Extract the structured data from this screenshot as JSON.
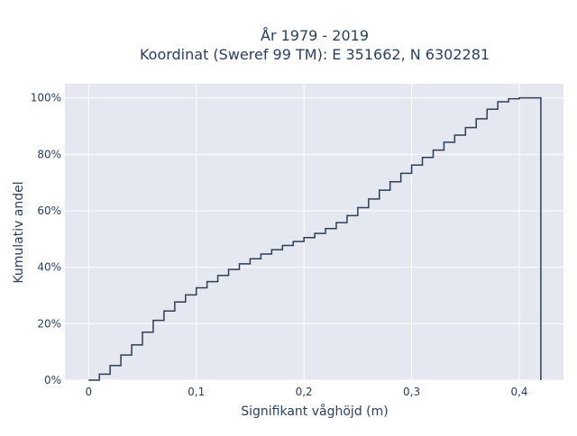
{
  "chart_data": {
    "type": "line",
    "line_shape": "step",
    "title_lines": [
      "År 1979 - 2019",
      "Koordinat (Sweref 99 TM): E 351662, N 6302281"
    ],
    "xlabel": "Signifikant våghöjd (m)",
    "ylabel": "Kumulativ andel",
    "xlim": [
      -0.022,
      0.441
    ],
    "ylim": [
      0,
      1.05
    ],
    "x_ticks": [
      0,
      0.1,
      0.2,
      0.3,
      0.4
    ],
    "x_tick_labels": [
      "0",
      "0,1",
      "0,2",
      "0,3",
      "0,4"
    ],
    "y_ticks": [
      0,
      0.2,
      0.4,
      0.6,
      0.8,
      1.0
    ],
    "y_tick_labels": [
      "0%",
      "20%",
      "40%",
      "60%",
      "80%",
      "100%"
    ],
    "grid": true,
    "background": "#e5e8f1",
    "line_color": "#2f3e52",
    "series": [
      {
        "x": [
          0,
          0.01,
          0.02,
          0.03,
          0.04,
          0.05,
          0.06,
          0.07,
          0.08,
          0.09,
          0.1,
          0.11,
          0.12,
          0.13,
          0.14,
          0.15,
          0.16,
          0.17,
          0.18,
          0.19,
          0.2,
          0.21,
          0.22,
          0.23,
          0.24,
          0.25,
          0.26,
          0.27,
          0.28,
          0.29,
          0.3,
          0.31,
          0.32,
          0.33,
          0.34,
          0.35,
          0.36,
          0.37,
          0.38,
          0.39,
          0.4,
          0.42
        ],
        "y": [
          0,
          0.021,
          0.052,
          0.089,
          0.125,
          0.17,
          0.212,
          0.245,
          0.277,
          0.302,
          0.327,
          0.349,
          0.371,
          0.392,
          0.412,
          0.43,
          0.447,
          0.462,
          0.477,
          0.491,
          0.505,
          0.52,
          0.537,
          0.558,
          0.583,
          0.611,
          0.642,
          0.673,
          0.703,
          0.733,
          0.762,
          0.789,
          0.815,
          0.843,
          0.868,
          0.895,
          0.926,
          0.96,
          0.986,
          0.997,
          1.0,
          0
        ]
      }
    ]
  }
}
